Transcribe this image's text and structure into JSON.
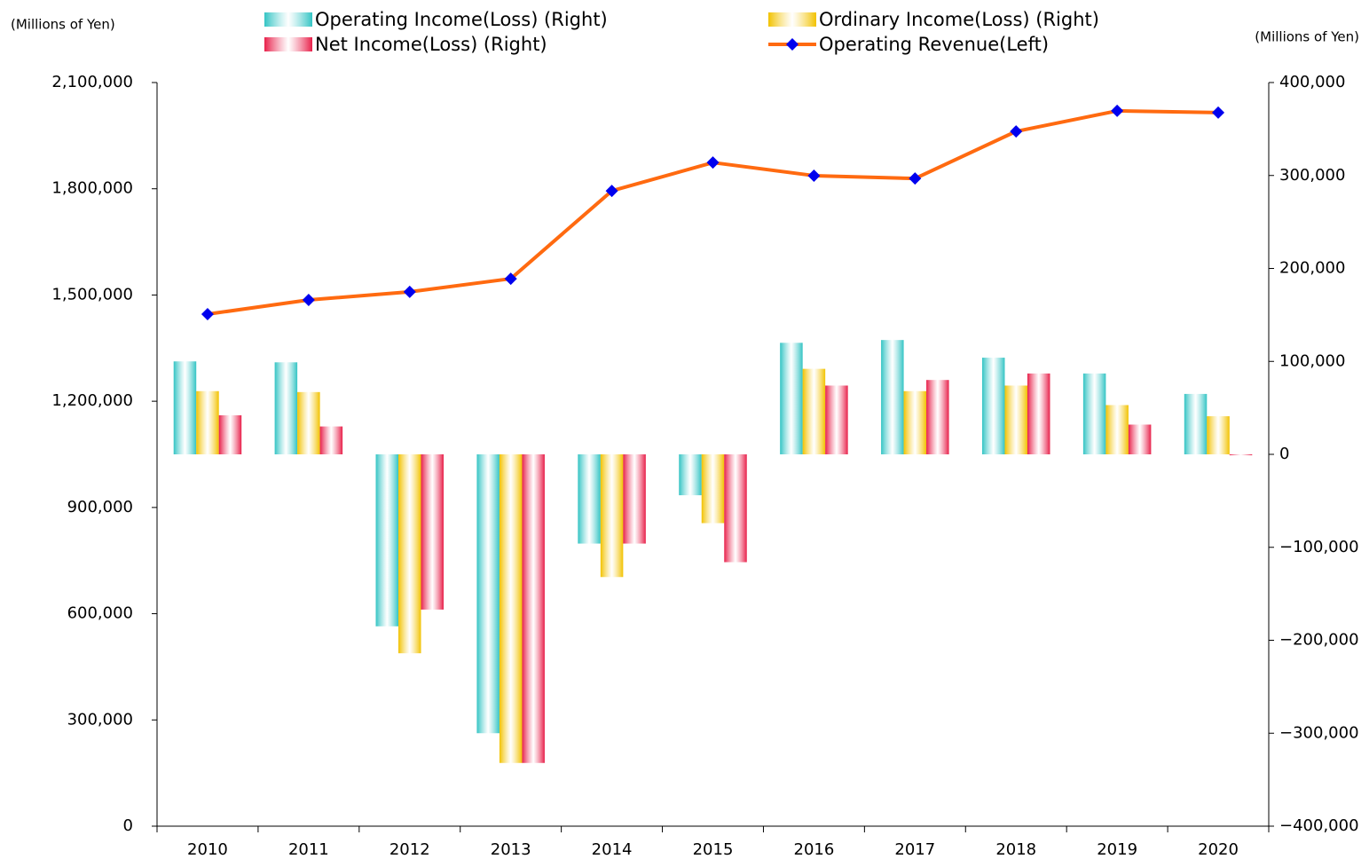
{
  "chart_data": {
    "type": "bar",
    "y_unit_label": "(Millions of Yen)",
    "y2_unit_label": "(Millions of Yen)",
    "categories": [
      "2010",
      "2011",
      "2012",
      "2013",
      "2014",
      "2015",
      "2016",
      "2017",
      "2018",
      "2019",
      "2020"
    ],
    "series": [
      {
        "name": "Operating Income(Loss) (Right)",
        "type": "bar",
        "axis": "y2",
        "color": "#33c4c4",
        "values": [
          100000,
          99000,
          -185000,
          -300000,
          -96000,
          -44000,
          120000,
          123000,
          104000,
          87000,
          65000
        ]
      },
      {
        "name": "Ordinary Income(Loss) (Right)",
        "type": "bar",
        "axis": "y2",
        "color": "#f2c200",
        "values": [
          68000,
          67000,
          -214000,
          -332000,
          -132000,
          -74000,
          92000,
          68000,
          74000,
          53000,
          41000
        ]
      },
      {
        "name": "Net Income(Loss) (Right)",
        "type": "bar",
        "axis": "y2",
        "color": "#e8204a",
        "values": [
          42000,
          30000,
          -167000,
          -332000,
          -96000,
          -116000,
          74000,
          80000,
          87000,
          32000,
          -1000
        ]
      },
      {
        "name": "Operating Revenue(Left)",
        "type": "line",
        "axis": "y",
        "color": "#ff6a10",
        "marker_color": "#0000ee",
        "values": [
          1446000,
          1486000,
          1509000,
          1546000,
          1794000,
          1874000,
          1837000,
          1829000,
          1962000,
          2020000,
          2015000
        ]
      }
    ],
    "ylim": [
      0,
      2100000
    ],
    "yticks": [
      0,
      {
        "value": 300000,
        "label": "300,000"
      },
      {
        "value": 600000,
        "label": "600,000"
      },
      {
        "value": 900000,
        "label": "900,000"
      },
      {
        "value": 1200000,
        "label": "1,200,000"
      },
      {
        "value": 1500000,
        "label": "1,500,000"
      },
      {
        "value": 1800000,
        "label": "1,800,000"
      },
      {
        "value": 2100000,
        "label": "2,100,000"
      }
    ],
    "y2lim": [
      -400000,
      400000
    ],
    "y2ticks": [
      {
        "value": -400000,
        "label": "−400,000"
      },
      {
        "value": -300000,
        "label": "−300,000"
      },
      {
        "value": -200000,
        "label": "−200,000"
      },
      {
        "value": -100000,
        "label": "−100,000"
      },
      0,
      {
        "value": 100000,
        "label": "100,000"
      },
      {
        "value": 200000,
        "label": "200,000"
      },
      {
        "value": 300000,
        "label": "300,000"
      },
      {
        "value": 400000,
        "label": "400,000"
      }
    ],
    "grid": false
  }
}
